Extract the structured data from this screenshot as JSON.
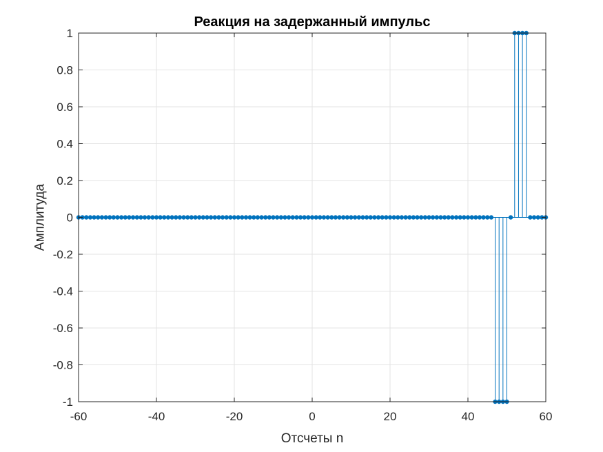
{
  "chart_data": {
    "type": "stem",
    "title": "Реакция на задержанный импульс",
    "xlabel": "Отсчеты n",
    "ylabel": "Амплитуда",
    "xlim": [
      -60,
      60
    ],
    "ylim": [
      -1,
      1
    ],
    "xticks": [
      -60,
      -40,
      -20,
      0,
      20,
      40,
      60
    ],
    "yticks": [
      -1,
      -0.8,
      -0.6,
      -0.4,
      -0.2,
      0,
      0.2,
      0.4,
      0.6,
      0.8,
      1
    ],
    "xtick_labels": [
      "-60",
      "-40",
      "-20",
      "0",
      "20",
      "40",
      "60"
    ],
    "ytick_labels": [
      "-1",
      "-0.8",
      "-0.6",
      "-0.4",
      "-0.2",
      "0",
      "0.2",
      "0.4",
      "0.6",
      "0.8",
      "1"
    ],
    "grid": true,
    "series": [
      {
        "color": "#0072BD",
        "x": [
          -60,
          -59,
          -58,
          -57,
          -56,
          -55,
          -54,
          -53,
          -52,
          -51,
          -50,
          -49,
          -48,
          -47,
          -46,
          -45,
          -44,
          -43,
          -42,
          -41,
          -40,
          -39,
          -38,
          -37,
          -36,
          -35,
          -34,
          -33,
          -32,
          -31,
          -30,
          -29,
          -28,
          -27,
          -26,
          -25,
          -24,
          -23,
          -22,
          -21,
          -20,
          -19,
          -18,
          -17,
          -16,
          -15,
          -14,
          -13,
          -12,
          -11,
          -10,
          -9,
          -8,
          -7,
          -6,
          -5,
          -4,
          -3,
          -2,
          -1,
          0,
          1,
          2,
          3,
          4,
          5,
          6,
          7,
          8,
          9,
          10,
          11,
          12,
          13,
          14,
          15,
          16,
          17,
          18,
          19,
          20,
          21,
          22,
          23,
          24,
          25,
          26,
          27,
          28,
          29,
          30,
          31,
          32,
          33,
          34,
          35,
          36,
          37,
          38,
          39,
          40,
          41,
          42,
          43,
          44,
          45,
          46,
          47,
          48,
          49,
          50,
          51,
          52,
          53,
          54,
          55,
          56,
          57,
          58,
          59,
          60
        ],
        "y": [
          0,
          0,
          0,
          0,
          0,
          0,
          0,
          0,
          0,
          0,
          0,
          0,
          0,
          0,
          0,
          0,
          0,
          0,
          0,
          0,
          0,
          0,
          0,
          0,
          0,
          0,
          0,
          0,
          0,
          0,
          0,
          0,
          0,
          0,
          0,
          0,
          0,
          0,
          0,
          0,
          0,
          0,
          0,
          0,
          0,
          0,
          0,
          0,
          0,
          0,
          0,
          0,
          0,
          0,
          0,
          0,
          0,
          0,
          0,
          0,
          0,
          0,
          0,
          0,
          0,
          0,
          0,
          0,
          0,
          0,
          0,
          0,
          0,
          0,
          0,
          0,
          0,
          0,
          0,
          0,
          0,
          0,
          0,
          0,
          0,
          0,
          0,
          0,
          0,
          0,
          0,
          0,
          0,
          0,
          0,
          0,
          0,
          0,
          0,
          0,
          0,
          0,
          0,
          0,
          0,
          0,
          0,
          -1,
          -1,
          -1,
          -1,
          0,
          1,
          1,
          1,
          1,
          0,
          0,
          0,
          0,
          0
        ]
      }
    ]
  }
}
